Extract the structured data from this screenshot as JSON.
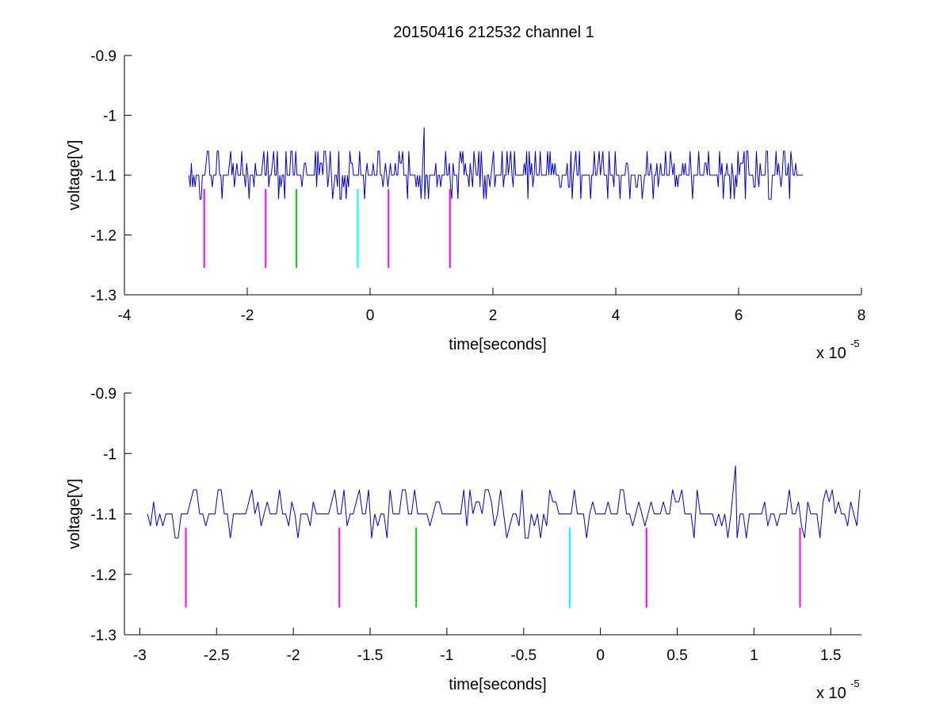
{
  "figure_title": "20150416 212532 channel 1",
  "colors": {
    "signal": "#0000cc",
    "marker_magenta": "#ff00ff",
    "marker_green": "#00dd00",
    "marker_cyan": "#00ffff",
    "axes": "#000000"
  },
  "chart_data": [
    {
      "type": "line",
      "title": "20150416 212532 channel 1",
      "xlabel": "time[seconds]",
      "ylabel": "voltage[V]",
      "x_multiplier": "x 10",
      "x_exponent": "-5",
      "xlim": [
        -4,
        8
      ],
      "ylim": [
        -1.3,
        -0.9
      ],
      "y_reversed": true,
      "grid": false,
      "x_ticks": [
        -4,
        -2,
        0,
        2,
        4,
        6,
        8
      ],
      "x_tick_labels": [
        "-4",
        "-2",
        "0",
        "2",
        "4",
        "6",
        "8"
      ],
      "y_ticks": [
        -0.9,
        -1,
        -1.1,
        -1.2,
        -1.3
      ],
      "y_tick_labels": [
        "-0.9",
        "-1",
        "-1.1",
        "-1.2",
        "-1.3"
      ],
      "signal": {
        "x_range": [
          -2.95,
          7.05
        ],
        "baseline": -1.1,
        "levels": [
          -1.06,
          -1.08,
          -1.1,
          -1.12,
          -1.14
        ],
        "peak": {
          "x": 0.88,
          "y": -1.02
        }
      },
      "markers": [
        {
          "x": -2.7,
          "y_from": -1.123,
          "y_to": -1.255,
          "color": "marker_magenta"
        },
        {
          "x": -1.7,
          "y_from": -1.123,
          "y_to": -1.255,
          "color": "marker_magenta"
        },
        {
          "x": -1.2,
          "y_from": -1.123,
          "y_to": -1.255,
          "color": "marker_green"
        },
        {
          "x": -0.2,
          "y_from": -1.123,
          "y_to": -1.255,
          "color": "marker_cyan"
        },
        {
          "x": 0.3,
          "y_from": -1.123,
          "y_to": -1.255,
          "color": "marker_magenta"
        },
        {
          "x": 1.3,
          "y_from": -1.123,
          "y_to": -1.255,
          "color": "marker_magenta"
        }
      ]
    },
    {
      "type": "line",
      "title": "",
      "xlabel": "time[seconds]",
      "ylabel": "voltage[V]",
      "x_multiplier": "x 10",
      "x_exponent": "-5",
      "xlim": [
        -3.1,
        1.7
      ],
      "ylim": [
        -1.3,
        -0.9
      ],
      "y_reversed": true,
      "grid": false,
      "x_ticks": [
        -3,
        -2.5,
        -2,
        -1.5,
        -1,
        -0.5,
        0,
        0.5,
        1,
        1.5
      ],
      "x_tick_labels": [
        "-3",
        "-2.5",
        "-2",
        "-1.5",
        "-1",
        "-0.5",
        "0",
        "0.5",
        "1",
        "1.5"
      ],
      "y_ticks": [
        -0.9,
        -1,
        -1.1,
        -1.2,
        -1.3
      ],
      "y_tick_labels": [
        "-0.9",
        "-1",
        "-1.1",
        "-1.2",
        "-1.3"
      ],
      "signal": {
        "x_range": [
          -2.95,
          1.7
        ],
        "baseline": -1.1,
        "levels": [
          -1.06,
          -1.08,
          -1.1,
          -1.12,
          -1.14
        ],
        "peak": {
          "x": 0.88,
          "y": -1.02
        }
      },
      "markers": [
        {
          "x": -2.7,
          "y_from": -1.123,
          "y_to": -1.255,
          "color": "marker_magenta"
        },
        {
          "x": -1.7,
          "y_from": -1.123,
          "y_to": -1.255,
          "color": "marker_magenta"
        },
        {
          "x": -1.2,
          "y_from": -1.123,
          "y_to": -1.255,
          "color": "marker_green"
        },
        {
          "x": -0.2,
          "y_from": -1.123,
          "y_to": -1.255,
          "color": "marker_cyan"
        },
        {
          "x": 0.3,
          "y_from": -1.123,
          "y_to": -1.255,
          "color": "marker_magenta"
        },
        {
          "x": 1.3,
          "y_from": -1.123,
          "y_to": -1.255,
          "color": "marker_magenta"
        }
      ]
    }
  ]
}
